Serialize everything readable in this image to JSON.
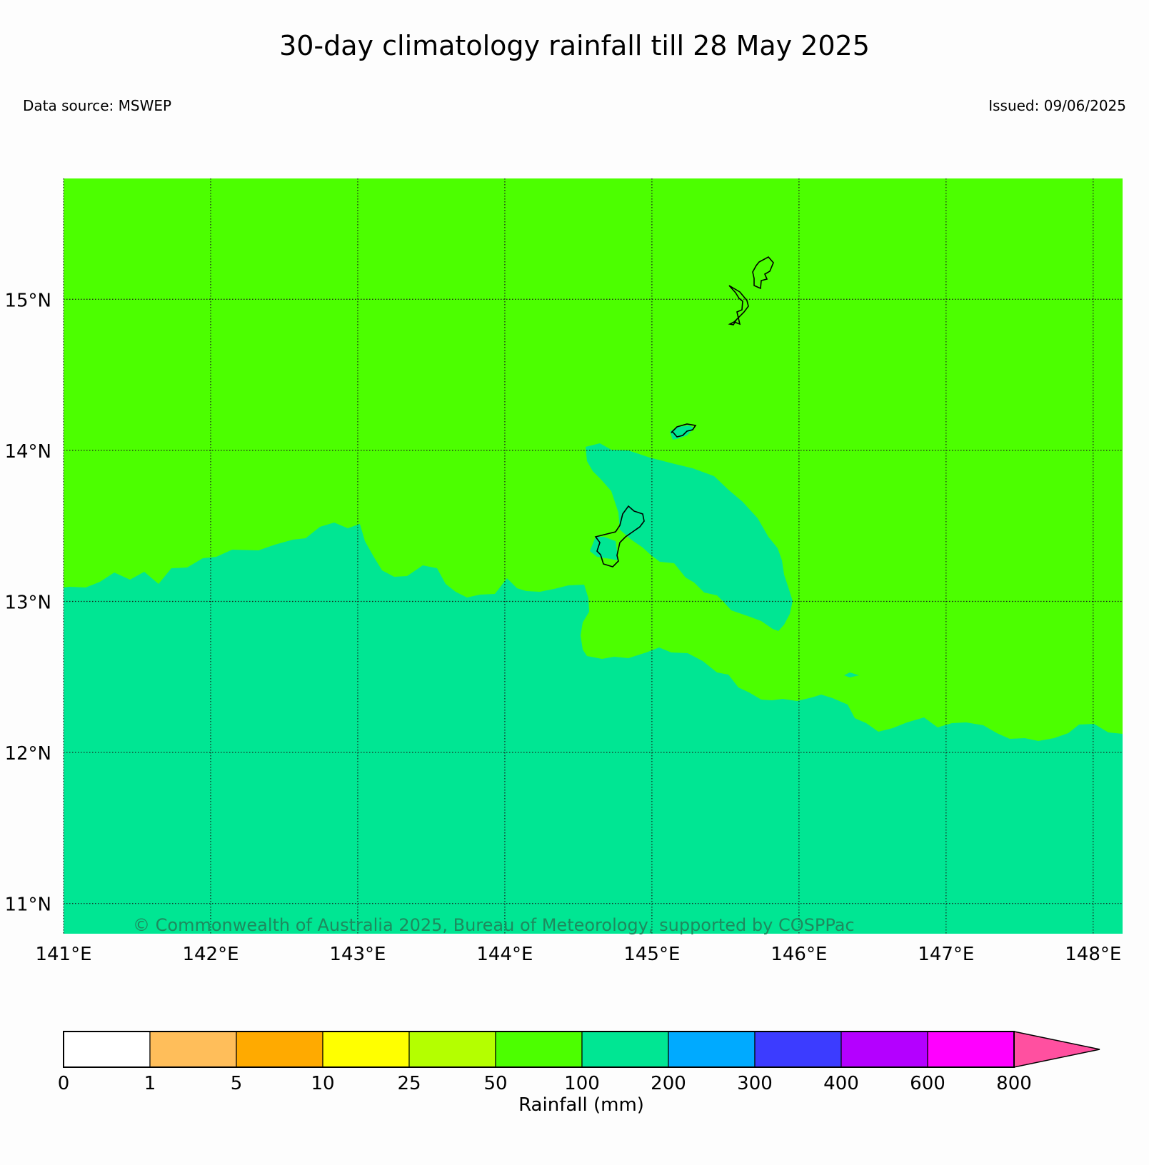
{
  "title": "30-day climatology rainfall till 28 May 2025",
  "data_source": "Data source: MSWEP",
  "issued": "Issued: 09/06/2025",
  "copyright": "© Commonwealth of Australia 2025, Bureau of Meteorology, supported by COSPPac",
  "map": {
    "lon_range": [
      141,
      148.2
    ],
    "lat_range": [
      10.8,
      15.8
    ],
    "lon_ticks": [
      "141°E",
      "142°E",
      "143°E",
      "144°E",
      "145°E",
      "146°E",
      "147°E",
      "148°E"
    ],
    "lat_ticks": [
      "11°N",
      "12°N",
      "13°N",
      "14°N",
      "15°N"
    ],
    "grid": "dotted",
    "background_class": "50-100",
    "background_color": "#4cff00",
    "regions_class": "100-200",
    "regions_color": "#00e693"
  },
  "colorbar": {
    "label": "Rainfall (mm)",
    "ticks": [
      "0",
      "1",
      "5",
      "10",
      "25",
      "50",
      "100",
      "200",
      "300",
      "400",
      "600",
      "800"
    ],
    "colors": [
      "#ffffff",
      "#ffbe5a",
      "#ffaa00",
      "#ffff00",
      "#b4ff00",
      "#4cff00",
      "#00e693",
      "#00aaff",
      "#3c3cff",
      "#b400ff",
      "#ff00ff"
    ],
    "extend_color": "#ff50a0",
    "extend": "max"
  }
}
